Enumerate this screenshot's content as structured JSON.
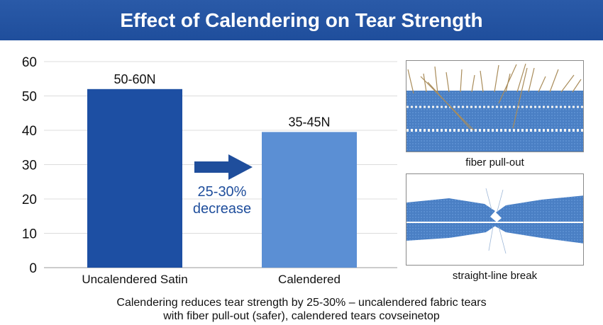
{
  "title": "Effect of Calendering on Tear Strength",
  "colors": {
    "title_bar": "#1f4e9c",
    "bar_uncalendered": "#1d4fa3",
    "bar_calendered": "#5b8fd4",
    "arrow": "#1f4e9c",
    "fabric": "#4a7fc4"
  },
  "chart_data": {
    "type": "bar",
    "categories": [
      "Uncalendered Satin",
      "Calendered"
    ],
    "values": [
      52,
      39.5
    ],
    "data_labels": [
      "50-60N",
      "35-45N"
    ],
    "ylim": [
      0,
      60
    ],
    "yticks": [
      0,
      10,
      20,
      30,
      40,
      50,
      60
    ],
    "grid": true,
    "annotation": {
      "line1": "25-30%",
      "line2": "decrease",
      "arrow": "right-arrow-icon"
    }
  },
  "panels": [
    {
      "caption": "fiber pull-out",
      "icon": "fiber-pull-out-fabric-image"
    },
    {
      "caption": "straight-line break",
      "icon": "torn-fabric-image"
    }
  ],
  "footer": {
    "line1": "Calendering reduces tear strength by 25-30% – uncalendered fabric tears",
    "line2": "with fiber pull-out (safer), calendered tears covseinetop"
  }
}
